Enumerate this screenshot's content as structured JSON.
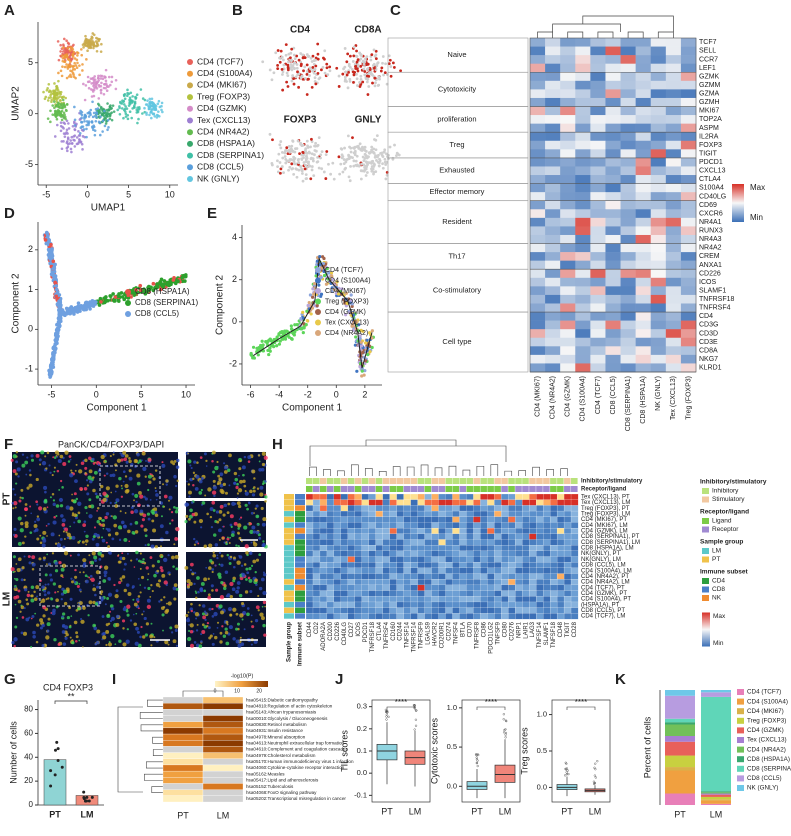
{
  "A": {
    "label": "A",
    "xlabel": "UMAP1",
    "ylabel": "UMAP2",
    "xlim": [
      -6,
      11
    ],
    "ylim": [
      -7,
      9
    ],
    "xticks": [
      -5,
      0,
      5,
      10
    ],
    "yticks": [
      -5,
      0,
      5
    ],
    "legend": [
      {
        "name": "CD4 (TCF7)",
        "color": "#e8615a"
      },
      {
        "name": "CD4 (S100A4)",
        "color": "#ee9a3a"
      },
      {
        "name": "CD4 (MKI67)",
        "color": "#c9a94a"
      },
      {
        "name": "Treg (FOXP3)",
        "color": "#b3c23e"
      },
      {
        "name": "CD4 (GZMK)",
        "color": "#d48bc8"
      },
      {
        "name": "Tex (CXCL13)",
        "color": "#9e7fd2"
      },
      {
        "name": "CD4 (NR4A2)",
        "color": "#63bb4f"
      },
      {
        "name": "CD8 (HSPA1A)",
        "color": "#38a86c"
      },
      {
        "name": "CD8 (SERPINA1)",
        "color": "#3fc0a6"
      },
      {
        "name": "CD8 (CCL5)",
        "color": "#5a9fdc"
      },
      {
        "name": "NK (GNLY)",
        "color": "#62c6e0"
      }
    ]
  },
  "B": {
    "label": "B",
    "titles": [
      "CD4",
      "CD8A",
      "FOXP3",
      "GNLY"
    ]
  },
  "C": {
    "label": "C",
    "groups": [
      {
        "name": "Naive",
        "genes": [
          "TCF7",
          "SELL",
          "CCR7",
          "LEF1"
        ]
      },
      {
        "name": "Cytotoxicity",
        "genes": [
          "GZMK",
          "GZMM",
          "GZMA",
          "GZMH"
        ]
      },
      {
        "name": "proliferation",
        "genes": [
          "MKI67",
          "TOP2A",
          "ASPM"
        ]
      },
      {
        "name": "Treg",
        "genes": [
          "IL2RA",
          "FOXP3",
          "TIGIT"
        ]
      },
      {
        "name": "Exhausted",
        "genes": [
          "PDCD1",
          "CXCL13",
          "CTLA4"
        ]
      },
      {
        "name": "Effector memory",
        "genes": [
          "S100A4",
          "CD40LG"
        ]
      },
      {
        "name": "Resident",
        "genes": [
          "CD69",
          "CXCR6",
          "NR4A1",
          "RUNX3",
          "NR4A3"
        ]
      },
      {
        "name": "Th17",
        "genes": [
          "NR4A2",
          "CREM",
          "ANXA1"
        ]
      },
      {
        "name": "Co-stimulatory",
        "genes": [
          "CD226",
          "ICOS",
          "SLAMF1",
          "TNFRSF18",
          "TNFRSF4"
        ]
      },
      {
        "name": "Cell type",
        "genes": [
          "CD4",
          "CD3G",
          "CD3D",
          "CD3E",
          "CD8A",
          "NKG7",
          "KLRD1"
        ]
      }
    ],
    "columns": [
      "CD4 (MKI67)",
      "CD4 (NR4A2)",
      "CD4 (GZMK)",
      "CD4 (S100A4)",
      "CD4 (TCF7)",
      "CD8 (CCL5)",
      "CD8 (SERPINA1)",
      "CD8 (HSPA1A)",
      "NK (GNLY)",
      "Tex (CXCL13)",
      "Treg (FOXP3)"
    ],
    "legend": [
      "Max",
      "Min"
    ]
  },
  "D": {
    "label": "D",
    "xlabel": "Component 1",
    "ylabel": "Component 2",
    "xlim": [
      -6.5,
      11
    ],
    "ylim": [
      -1.4,
      2.7
    ],
    "xticks": [
      -5,
      0,
      5,
      10
    ],
    "yticks": [
      -1,
      0,
      1,
      2
    ],
    "legend": [
      {
        "name": "CD8 (HSPA1A)",
        "color": "#e8524a"
      },
      {
        "name": "CD8 (SERPINA1)",
        "color": "#2ca02c"
      },
      {
        "name": "CD8 (CCL5)",
        "color": "#6fa0e0"
      }
    ]
  },
  "E": {
    "label": "E",
    "xlabel": "Component 1",
    "ylabel": "Component 2",
    "xlim": [
      -6.6,
      3.2
    ],
    "ylim": [
      -3,
      4.6
    ],
    "xticks": [
      -6,
      -4,
      -2,
      0,
      2
    ],
    "yticks": [
      -2,
      0,
      2,
      4
    ],
    "legend": [
      {
        "name": "CD4 (TCF7)",
        "color": "#8ea6dc"
      },
      {
        "name": "CD4 (S100A4)",
        "color": "#3f74c2"
      },
      {
        "name": "CD4 (MKI67)",
        "color": "#b9a6da"
      },
      {
        "name": "Treg (FOXP3)",
        "color": "#5dd55a"
      },
      {
        "name": "CD4 (GZMK)",
        "color": "#a2624a"
      },
      {
        "name": "Tex (CXCL13)",
        "color": "#e8c94a"
      },
      {
        "name": "CD4 (NR4A2)",
        "color": "#d9a77a"
      }
    ]
  },
  "F": {
    "label": "F",
    "stain": [
      {
        "text": "PanCK/",
        "color": "#f0d23c"
      },
      {
        "text": "CD4/",
        "color": "#44dd55"
      },
      {
        "text": "FOXP3/",
        "color": "#ff4466"
      },
      {
        "text": "DAPI",
        "color": "#5577ff"
      }
    ],
    "rows": [
      "PT",
      "LM"
    ]
  },
  "G": {
    "label": "G",
    "title": "CD4 FOXP3",
    "ylabel": "Number of cells",
    "categories": [
      "PT",
      "LM"
    ],
    "values": [
      38,
      8
    ],
    "colors": [
      "#8fd4d4",
      "#f08a7a"
    ],
    "ylim": [
      0,
      88
    ],
    "yticks": [
      0,
      20,
      40,
      60,
      80
    ],
    "significance": "**"
  },
  "H": {
    "label": "H",
    "annotation_rows": [
      "Inhibitory/stimulatory",
      "Receptor/ligand"
    ],
    "annotation_columns": [
      "Sample group",
      "Immune subset"
    ],
    "columns": [
      "CD44",
      "CD2",
      "ADORA2A",
      "CD200",
      "CD226",
      "CD40LG",
      "CD27",
      "ICOS",
      "PDCD1",
      "TNFRSF18",
      "CTLA4",
      "TNFRSF4",
      "CD160",
      "CD244",
      "TNFSF14",
      "TNFRSF14",
      "TNFRSF9",
      "LGALS9",
      "HAVCR2",
      "CD200R1",
      "CD274",
      "TNFSF4",
      "BTLA",
      "CD70",
      "TNFRSF8",
      "CD86",
      "PDCD1LG2",
      "TNFSF9",
      "CD80",
      "CD276",
      "NRP1",
      "LAIR1",
      "LAG3",
      "TNFSF14",
      "SLAMF1",
      "TNFSF18",
      "CD48",
      "TIGIT",
      "CD28"
    ],
    "rows": [
      "Tex (CXCL13), PT",
      "Tex (CXCL13), LM",
      "Treg (FOXP3), PT",
      "Treg (FOXP3), LM",
      "CD4 (MKI67), PT",
      "CD4 (MKI67), LM",
      "CD4 (GZMK), LM",
      "CD8 (SERPINA1), PT",
      "CD8 (SERPINA1), LM",
      "CD8 (HSPA1A), LM",
      "NK(GNLY), PT",
      "NK(GNLY), LM",
      "CD8 (CCL5), LM",
      "CD4 (S100A4), LM",
      "CD4 (NR4A2), PT",
      "CD4 (NR4A2), LM",
      "CD4 (TCF7), PT",
      "CD4 (GZMK), PT",
      "CD4 (S100A4), PT",
      "(HSPA1A), PT",
      "CD8 (CCL5), PT",
      "CD4 (TCF7), LM"
    ],
    "legend": [
      {
        "title": "Inhibitory/stimulatory",
        "items": [
          {
            "name": "Inhibitory",
            "color": "#b9e27c"
          },
          {
            "name": "Stimulatory",
            "color": "#f2c8a0"
          }
        ]
      },
      {
        "title": "Receptor/ligand",
        "items": [
          {
            "name": "Ligand",
            "color": "#7ccb47"
          },
          {
            "name": "Receptor",
            "color": "#a08ad2"
          }
        ]
      },
      {
        "title": "Sample group",
        "items": [
          {
            "name": "LM",
            "color": "#5cc8c8"
          },
          {
            "name": "PT",
            "color": "#f0c24a"
          }
        ]
      },
      {
        "title": "Immune subset",
        "items": [
          {
            "name": "CD4",
            "color": "#2e9e3e"
          },
          {
            "name": "CD8",
            "color": "#4a7fc8"
          },
          {
            "name": "NK",
            "color": "#f08c30"
          }
        ]
      }
    ],
    "scale": [
      "Max",
      "Min"
    ]
  },
  "I": {
    "label": "I",
    "colorbar_title": "-log10(P)",
    "colorbar_ticks": [
      0,
      10,
      20
    ],
    "colorbar_lim": [
      0,
      24
    ],
    "columns": [
      "PT",
      "LM"
    ],
    "rows": [
      "hsa05415:Diabetic cardiomyopathy",
      "hsa04810:Regulation of actin cytoskeleton",
      "hsa05143:African trypanosomiasis",
      "hsa00010:Glycolysis / Gluconeogenesis",
      "hsa00830:Retinol metabolism",
      "hsa04931:Insulin resistance",
      "hsa04978:Mineral absorption",
      "hsa04613:Neutrophil extracellular trap formation",
      "hsa04610:Complement and coagulation cascades",
      "hsa04979:Cholesterol metabolism",
      "hsa05170:Human immunodeficiency virus 1 infection",
      "hsa04060:Cytokine-cytokine receptor interaction",
      "hsa05162:Measles",
      "hsa05417:Lipid and atherosclerosis",
      "hsa05152:Tuberculosis",
      "hsa04068:FoxO signaling pathway",
      "hsa05202:Transcriptional misregulation in cancer"
    ]
  },
  "J": {
    "label": "J",
    "categories": [
      "PT",
      "LM"
    ],
    "colors": [
      "#8fd4e0",
      "#f0857a"
    ],
    "plots": [
      {
        "ylabel": "TIL scores",
        "ylim": [
          -0.13,
          0.33
        ],
        "yticks": [
          -0.1,
          {
            "value": 0,
            "label": "0.0"
          },
          0.1,
          0.2,
          0.3
        ],
        "boxes": [
          [
            -0.05,
            0.06,
            0.1,
            0.13,
            0.23
          ],
          [
            -0.06,
            0.04,
            0.07,
            0.1,
            0.19
          ]
        ],
        "significance": "****"
      },
      {
        "ylabel": "Cytotoxic scores",
        "ylim": [
          -0.2,
          1.1
        ],
        "yticks": [
          {
            "value": 0,
            "label": "0.0"
          },
          0.5,
          {
            "value": 1,
            "label": "1.0"
          }
        ],
        "boxes": [
          [
            -0.15,
            -0.04,
            0.0,
            0.06,
            0.22
          ],
          [
            -0.15,
            0.05,
            0.15,
            0.27,
            0.6
          ]
        ],
        "significance": "****"
      },
      {
        "ylabel": "Treg scores",
        "ylim": [
          -0.2,
          1.2
        ],
        "yticks": [
          {
            "value": 0,
            "label": "0.0"
          },
          0.5,
          {
            "value": 1,
            "label": "1.0"
          }
        ],
        "boxes": [
          [
            -0.12,
            -0.03,
            0.0,
            0.04,
            0.15
          ],
          [
            -0.1,
            -0.06,
            -0.04,
            -0.02,
            0.03
          ]
        ],
        "significance": "****"
      }
    ]
  },
  "K": {
    "label": "K",
    "ylabel": "Percent of cells",
    "categories": [
      "PT",
      "LM"
    ],
    "ylim": [
      0,
      100
    ],
    "series": [
      {
        "name": "CD4 (TCF7)",
        "color": "#e87fb8",
        "values": [
          10,
          1
        ]
      },
      {
        "name": "CD4 (S100A4)",
        "color": "#f0a040",
        "values": [
          20,
          3
        ]
      },
      {
        "name": "CD4 (MKI67)",
        "color": "#d9b24a",
        "values": [
          3,
          1
        ]
      },
      {
        "name": "Treg (FOXP3)",
        "color": "#c8d040",
        "values": [
          10,
          2
        ]
      },
      {
        "name": "CD4 (GZMK)",
        "color": "#e8605a",
        "values": [
          12,
          2
        ]
      },
      {
        "name": "Tex (CXCL13)",
        "color": "#a77fd2",
        "values": [
          5,
          1
        ]
      },
      {
        "name": "CD4 (NR4A2)",
        "color": "#72c05a",
        "values": [
          10,
          1
        ]
      },
      {
        "name": "CD8 (HSPA1A)",
        "color": "#3aa870",
        "values": [
          2,
          1
        ]
      },
      {
        "name": "CD8 (SERPINA1)",
        "color": "#5fd6b8",
        "values": [
          3,
          82
        ]
      },
      {
        "name": "CD8 (CCL5)",
        "color": "#b79ce0",
        "values": [
          20,
          4
        ]
      },
      {
        "name": "NK (GNLY)",
        "color": "#6ec8e8",
        "values": [
          5,
          2
        ]
      }
    ]
  }
}
